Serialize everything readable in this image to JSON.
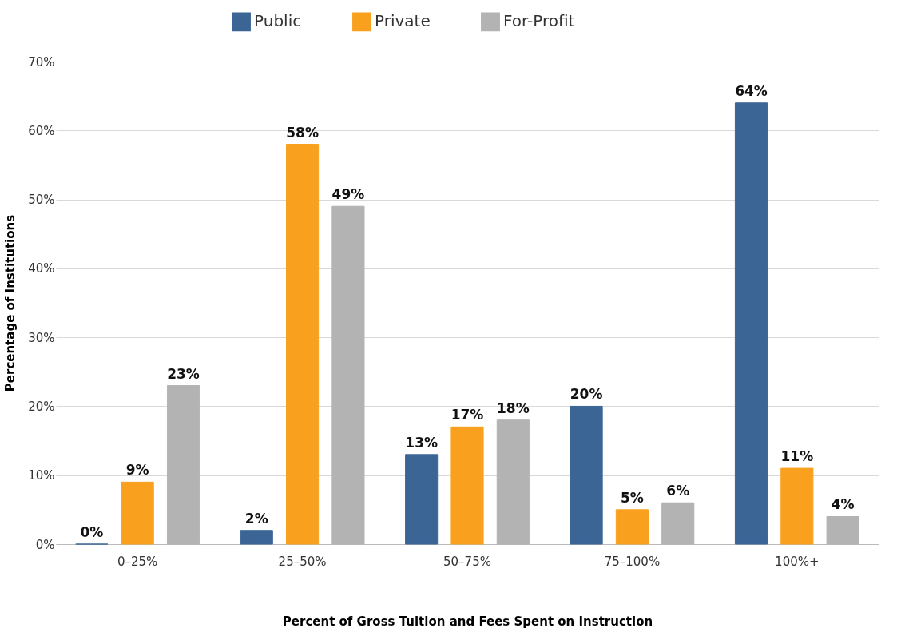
{
  "chart_data": {
    "type": "bar",
    "xlabel": "Percent of Gross Tuition and Fees Spent on Instruction",
    "ylabel": "Percentage of Institutions",
    "categories": [
      "0–25%",
      "25–50%",
      "50–75%",
      "75–100%",
      "100%+"
    ],
    "series": [
      {
        "name": "Public",
        "color": "#3b6595",
        "values": [
          0,
          2,
          13,
          20,
          64
        ],
        "value_labels": [
          "0%",
          "2%",
          "13%",
          "20%",
          "64%"
        ]
      },
      {
        "name": "Private",
        "color": "#f9a11f",
        "values": [
          9,
          58,
          17,
          5,
          11
        ],
        "value_labels": [
          "9%",
          "58%",
          "17%",
          "5%",
          "11%"
        ]
      },
      {
        "name": "For-Profit",
        "color": "#b3b3b3",
        "values": [
          23,
          49,
          18,
          6,
          4
        ],
        "value_labels": [
          "23%",
          "49%",
          "18%",
          "6%",
          "4%"
        ]
      }
    ],
    "ylim": [
      0,
      70
    ],
    "yticks": [
      {
        "value": 0,
        "label": "0%"
      },
      {
        "value": 10,
        "label": "10%"
      },
      {
        "value": 20,
        "label": "20%"
      },
      {
        "value": 30,
        "label": "30%"
      },
      {
        "value": 40,
        "label": "40%"
      },
      {
        "value": 50,
        "label": "50%"
      },
      {
        "value": 60,
        "label": "60%"
      },
      {
        "value": 70,
        "label": "70%"
      }
    ],
    "grid": "y",
    "legend": "top"
  }
}
